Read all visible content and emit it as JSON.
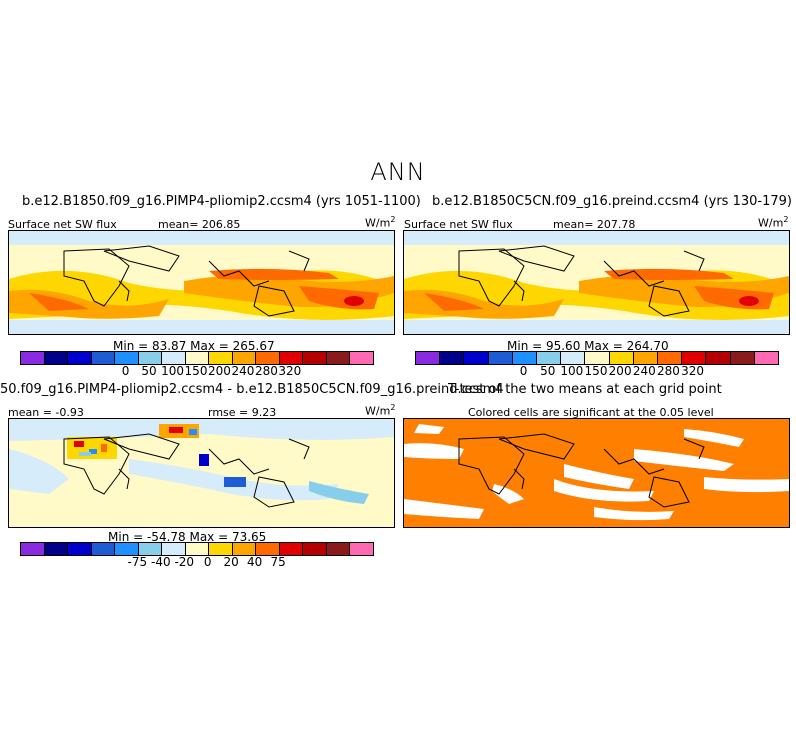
{
  "season": "ANN",
  "panels": {
    "top_left": {
      "title": "b.e12.B1850.f09_g16.PIMP4-pliomip2.ccsm4 (yrs 1051-1100)",
      "variable": "Surface net SW flux",
      "mean": "mean= 206.85",
      "units": "W/m",
      "units_exp": "2",
      "minmax": "Min =  83.87  Max = 265.67"
    },
    "top_right": {
      "title": "b.e12.B1850C5CN.f09_g16.preind.ccsm4 (yrs 130-179)",
      "variable": "Surface net SW flux",
      "mean": "mean= 207.78",
      "units": "W/m",
      "units_exp": "2",
      "minmax": "Min =  95.60  Max = 264.70"
    },
    "bottom_left": {
      "title": "50.f09_g16.PIMP4-pliomip2.ccsm4 - b.e12.B1850C5CN.f09_g16.preind.ccsm4",
      "mean": "mean =  -0.93",
      "rmse": "rmse =   9.23",
      "units": "W/m",
      "units_exp": "2",
      "minmax": "Min = -54.78  Max =  73.65"
    },
    "bottom_right": {
      "title": "T-test of the two means at each grid point",
      "subtitle": "Colored cells are significant at the 0.05 level"
    }
  },
  "colorbar_abs": {
    "colors": [
      "#8a2be2",
      "#00008b",
      "#0000cd",
      "#1e5cd6",
      "#1e90ff",
      "#87ceeb",
      "#d6ecfa",
      "#fffac8",
      "#ffd700",
      "#ffa500",
      "#ff6a00",
      "#e10000",
      "#b40000",
      "#8b1a1a",
      "#ff69b4"
    ],
    "ticks": [
      "0",
      "50",
      "100",
      "150",
      "200",
      "240",
      "280",
      "320"
    ]
  },
  "colorbar_diff": {
    "colors": [
      "#8a2be2",
      "#00008b",
      "#0000cd",
      "#1e5cd6",
      "#1e90ff",
      "#87ceeb",
      "#d6ecfa",
      "#fffac8",
      "#ffd700",
      "#ffa500",
      "#ff6a00",
      "#e10000",
      "#b40000",
      "#8b1a1a",
      "#ff69b4"
    ],
    "ticks": [
      "-75",
      "-40",
      "-20",
      "0",
      "20",
      "40",
      "75"
    ]
  }
}
